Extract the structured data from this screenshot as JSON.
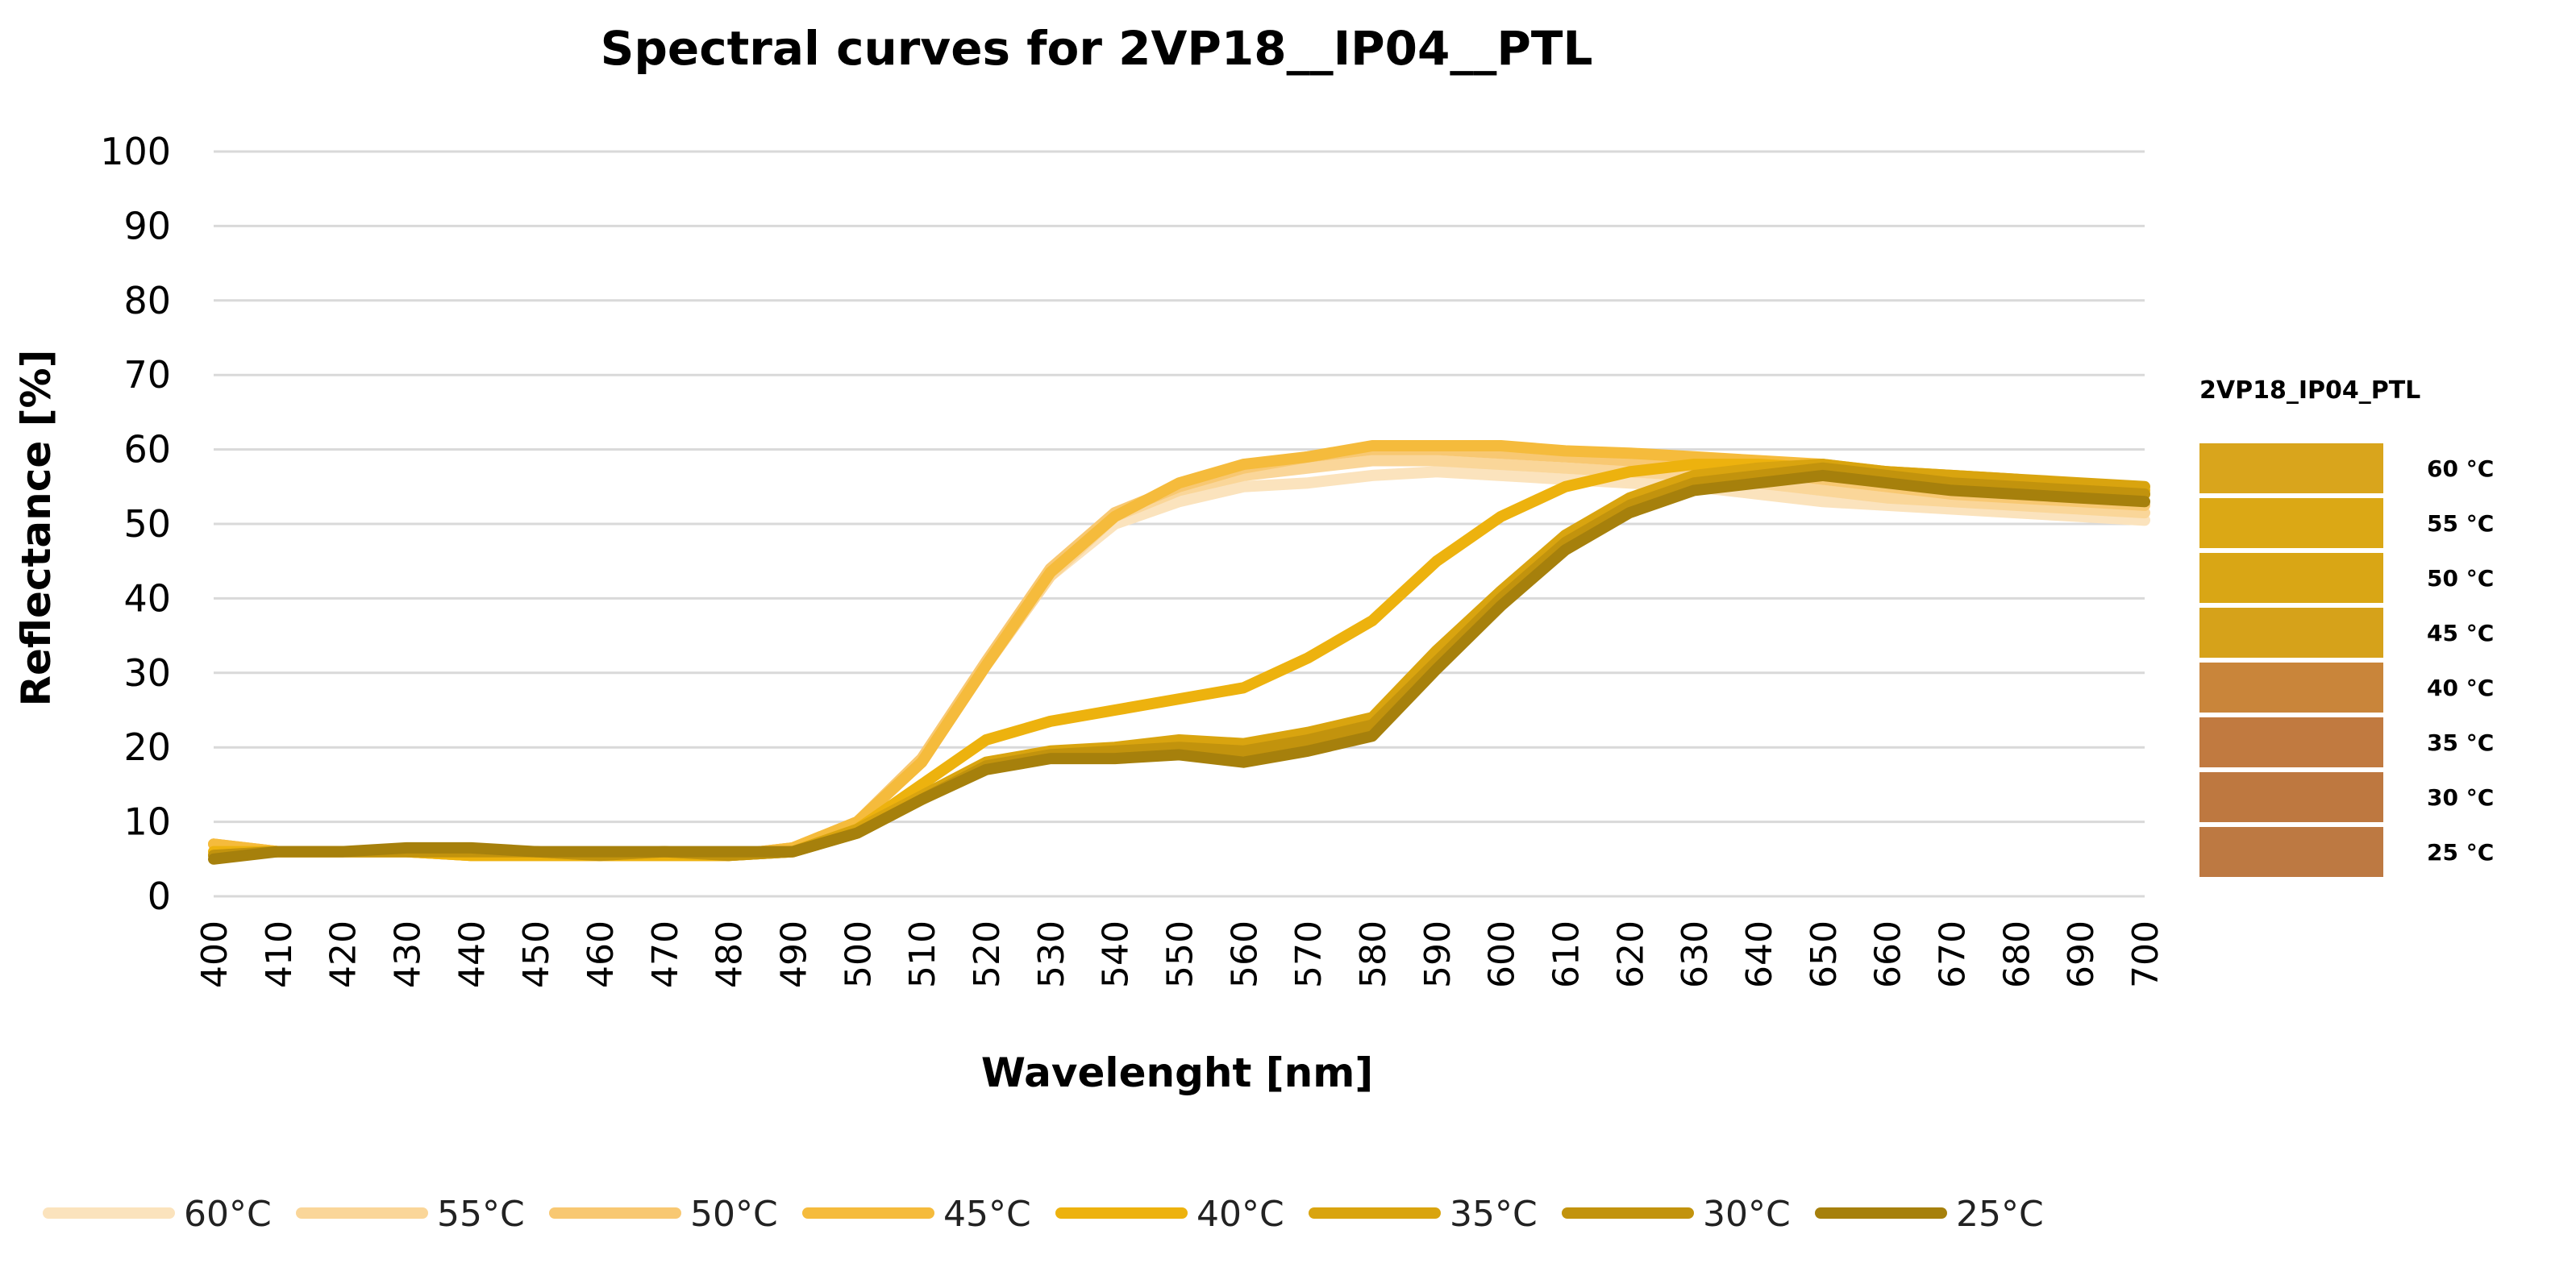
{
  "chart_data": {
    "type": "line",
    "title": "Spectral curves for 2VP18__IP04__PTL",
    "xlabel": "Wavelenght [nm]",
    "ylabel": "Reflectance [%]",
    "ylim": [
      0,
      100
    ],
    "yticks": [
      "0",
      "10",
      "20",
      "30",
      "40",
      "50",
      "60",
      "70",
      "80",
      "90",
      "100"
    ],
    "x": [
      400,
      410,
      420,
      430,
      440,
      450,
      460,
      470,
      480,
      490,
      500,
      510,
      520,
      530,
      540,
      550,
      560,
      570,
      580,
      590,
      600,
      610,
      620,
      630,
      640,
      650,
      660,
      670,
      680,
      690,
      700
    ],
    "xticks": [
      "400",
      "410",
      "420",
      "430",
      "440",
      "450",
      "460",
      "470",
      "480",
      "490",
      "500",
      "510",
      "520",
      "530",
      "540",
      "550",
      "560",
      "570",
      "580",
      "590",
      "600",
      "610",
      "620",
      "630",
      "640",
      "650",
      "660",
      "670",
      "680",
      "690",
      "700"
    ],
    "grid": true,
    "legend_position": "bottom",
    "series": [
      {
        "name": "60°C",
        "color": "#fbe3bd",
        "values": [
          7,
          6,
          6,
          6,
          5.5,
          5.5,
          5.5,
          5.5,
          5.5,
          6.5,
          10,
          18,
          31,
          43,
          50,
          53,
          55,
          55.5,
          56.5,
          57,
          56.5,
          56,
          55.5,
          55,
          54,
          53,
          52.5,
          52,
          51.5,
          51,
          50.5
        ]
      },
      {
        "name": "55°C",
        "color": "#fad699",
        "values": [
          7,
          6,
          6,
          6,
          5.5,
          5.5,
          5.5,
          5.5,
          5.5,
          6.5,
          10,
          18,
          31,
          43,
          51,
          54.5,
          56.5,
          57.5,
          58.5,
          58.5,
          58,
          57.5,
          57,
          56.5,
          55.5,
          54.5,
          53.5,
          53,
          52.5,
          52,
          51.5
        ]
      },
      {
        "name": "50°C",
        "color": "#f8c872",
        "values": [
          7,
          6,
          6,
          6,
          5.5,
          5.5,
          5.5,
          5.5,
          5.5,
          6.5,
          10,
          18.5,
          31.5,
          44,
          51.5,
          55,
          57.5,
          59,
          60,
          60,
          59.5,
          59,
          58.5,
          58,
          57,
          56,
          55,
          54,
          53.5,
          53,
          52.5
        ]
      },
      {
        "name": "45°C",
        "color": "#f5bb3c",
        "values": [
          7,
          6,
          6,
          6,
          5.5,
          5.5,
          5.5,
          5.5,
          5.5,
          6.5,
          10,
          18,
          31,
          43.5,
          51,
          55.5,
          58,
          59,
          60.5,
          60.5,
          60.5,
          59.8,
          59.5,
          59,
          58.5,
          58,
          57,
          56,
          55,
          54.5,
          54
        ]
      },
      {
        "name": "40°C",
        "color": "#edb20e",
        "values": [
          6,
          6,
          6,
          6,
          5.5,
          5.5,
          5.5,
          5.5,
          5.5,
          6,
          9,
          15,
          21,
          23.5,
          25,
          26.5,
          28,
          32,
          37,
          45,
          51,
          55,
          57,
          58,
          58,
          57.5,
          57,
          56.5,
          56,
          55,
          54.5
        ]
      },
      {
        "name": "35°C",
        "color": "#d9a40f",
        "values": [
          5.5,
          6,
          6,
          6,
          6,
          6,
          5.5,
          6,
          5.5,
          6,
          9,
          13.5,
          18,
          19.5,
          20,
          21,
          20.5,
          22,
          24,
          33,
          41,
          48.5,
          53.5,
          56.5,
          57.5,
          58,
          57,
          56.5,
          56,
          55.5,
          55
        ]
      },
      {
        "name": "30°C",
        "color": "#c2930d",
        "values": [
          5.5,
          6,
          6,
          6,
          6,
          6,
          5.5,
          6,
          5.5,
          6,
          8.5,
          13,
          17.5,
          19,
          19.5,
          20,
          19.5,
          21,
          23,
          31.5,
          40,
          47.5,
          52.5,
          55.5,
          56.5,
          57.5,
          56.5,
          55.5,
          55,
          54.5,
          54
        ]
      },
      {
        "name": "25°C",
        "color": "#a6800c",
        "values": [
          5,
          6,
          6,
          6.5,
          6.5,
          6,
          6,
          6,
          6,
          6,
          8.5,
          13,
          17,
          18.5,
          18.5,
          19,
          18,
          19.5,
          21.5,
          30.5,
          39,
          46.5,
          51.5,
          54.5,
          55.5,
          56.5,
          55.5,
          54.5,
          54,
          53.5,
          53
        ]
      }
    ]
  },
  "swatch_legend": {
    "title": "2VP18_IP04_PTL",
    "items": [
      {
        "label": "60 °C",
        "color": "#d9a51c"
      },
      {
        "label": "55 °C",
        "color": "#dba815"
      },
      {
        "label": "50 °C",
        "color": "#d9a615"
      },
      {
        "label": "45 °C",
        "color": "#d6a21a"
      },
      {
        "label": "40 °C",
        "color": "#c9853a"
      },
      {
        "label": "35 °C",
        "color": "#c17a40"
      },
      {
        "label": "30 °C",
        "color": "#be7840"
      },
      {
        "label": "25 °C",
        "color": "#bd7942"
      }
    ]
  }
}
